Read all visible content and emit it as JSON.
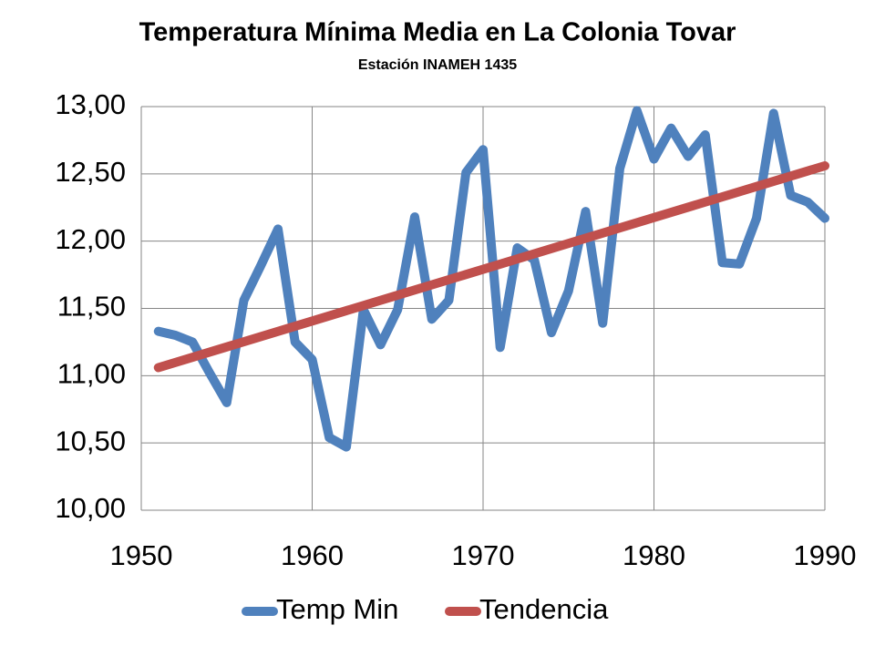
{
  "chart_data": {
    "type": "line",
    "title": "Temperatura Mínima Media en La Colonia Tovar",
    "subtitle": "Estación INAMEH 1435",
    "xlim": [
      1950,
      1990
    ],
    "xticks": [
      1950,
      1960,
      1970,
      1980,
      1990
    ],
    "ylim": [
      10,
      13
    ],
    "yticks": [
      {
        "value": 10,
        "label": "10,00"
      },
      {
        "value": 10.5,
        "label": "10,50"
      },
      {
        "value": 11,
        "label": "11,00"
      },
      {
        "value": 11.5,
        "label": "11,50"
      },
      {
        "value": 12,
        "label": "12,00"
      },
      {
        "value": 12.5,
        "label": "12,50"
      },
      {
        "value": 13,
        "label": "13,00"
      }
    ],
    "grid": true,
    "legend": "bottom",
    "series": [
      {
        "name": "Temp Min",
        "color": "#4f81bd",
        "x": [
          1951,
          1952,
          1953,
          1954,
          1955,
          1956,
          1957,
          1958,
          1959,
          1960,
          1961,
          1962,
          1963,
          1964,
          1965,
          1966,
          1967,
          1968,
          1969,
          1970,
          1971,
          1972,
          1973,
          1974,
          1975,
          1976,
          1977,
          1978,
          1979,
          1980,
          1981,
          1982,
          1983,
          1984,
          1985,
          1986,
          1987,
          1988,
          1989,
          1990
        ],
        "values": [
          11.33,
          11.3,
          11.25,
          11.02,
          10.8,
          11.56,
          11.82,
          12.09,
          11.25,
          11.12,
          10.54,
          10.47,
          11.49,
          11.23,
          11.49,
          12.18,
          11.42,
          11.56,
          12.51,
          12.68,
          11.21,
          11.95,
          11.86,
          11.32,
          11.63,
          12.22,
          11.39,
          12.54,
          12.97,
          12.61,
          12.84,
          12.63,
          12.79,
          11.84,
          11.83,
          12.17,
          12.95,
          12.34,
          12.29,
          12.17
        ]
      },
      {
        "name": "Tendencia",
        "color": "#c0504d",
        "x": [
          1951,
          1990
        ],
        "values": [
          11.06,
          12.56
        ]
      }
    ]
  }
}
